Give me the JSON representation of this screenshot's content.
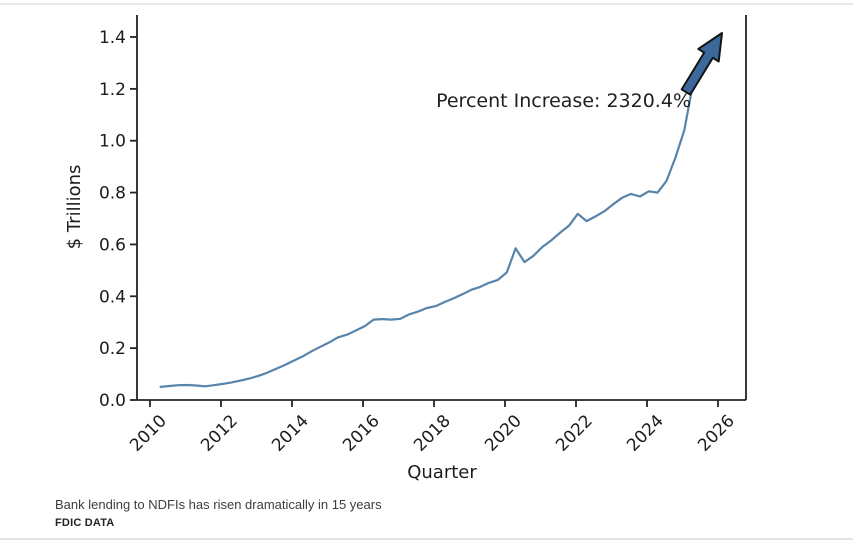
{
  "caption": {
    "title": "Bank lending to NDFIs has risen dramatically in 15 years",
    "source": "FDIC DATA"
  },
  "chart_data": {
    "type": "line",
    "title": "",
    "xlabel": "Quarter",
    "ylabel": "$ Trillions",
    "annotation": "Percent Increase: 2320.4%",
    "grid": false,
    "legend": "none",
    "x_ticks": [
      "2010",
      "2012",
      "2014",
      "2016",
      "2018",
      "2020",
      "2022",
      "2024",
      "2026"
    ],
    "y_ticks": [
      "0.0",
      "0.2",
      "0.4",
      "0.6",
      "0.8",
      "1.0",
      "1.2",
      "1.4"
    ],
    "xlim": [
      2009.63,
      2026.79
    ],
    "ylim": [
      0.0,
      1.485
    ],
    "line_color": "#5784ab",
    "arrow_color": "#3c699b",
    "series": [
      {
        "name": "Bank lending to NDFIs ($ trillions, quarterly)",
        "x_start_year": 2010.3,
        "x_step_years": 0.25,
        "values": [
          0.0505,
          0.054,
          0.057,
          0.058,
          0.056,
          0.053,
          0.057,
          0.062,
          0.068,
          0.075,
          0.083,
          0.093,
          0.105,
          0.12,
          0.135,
          0.152,
          0.168,
          0.188,
          0.205,
          0.222,
          0.242,
          0.252,
          0.268,
          0.285,
          0.31,
          0.312,
          0.31,
          0.313,
          0.33,
          0.341,
          0.355,
          0.362,
          0.378,
          0.392,
          0.408,
          0.425,
          0.436,
          0.452,
          0.463,
          0.492,
          0.585,
          0.532,
          0.556,
          0.59,
          0.615,
          0.645,
          0.672,
          0.718,
          0.69,
          0.708,
          0.728,
          0.755,
          0.78,
          0.795,
          0.785,
          0.805,
          0.8,
          0.845,
          0.935,
          1.04,
          1.2224
        ]
      }
    ]
  }
}
